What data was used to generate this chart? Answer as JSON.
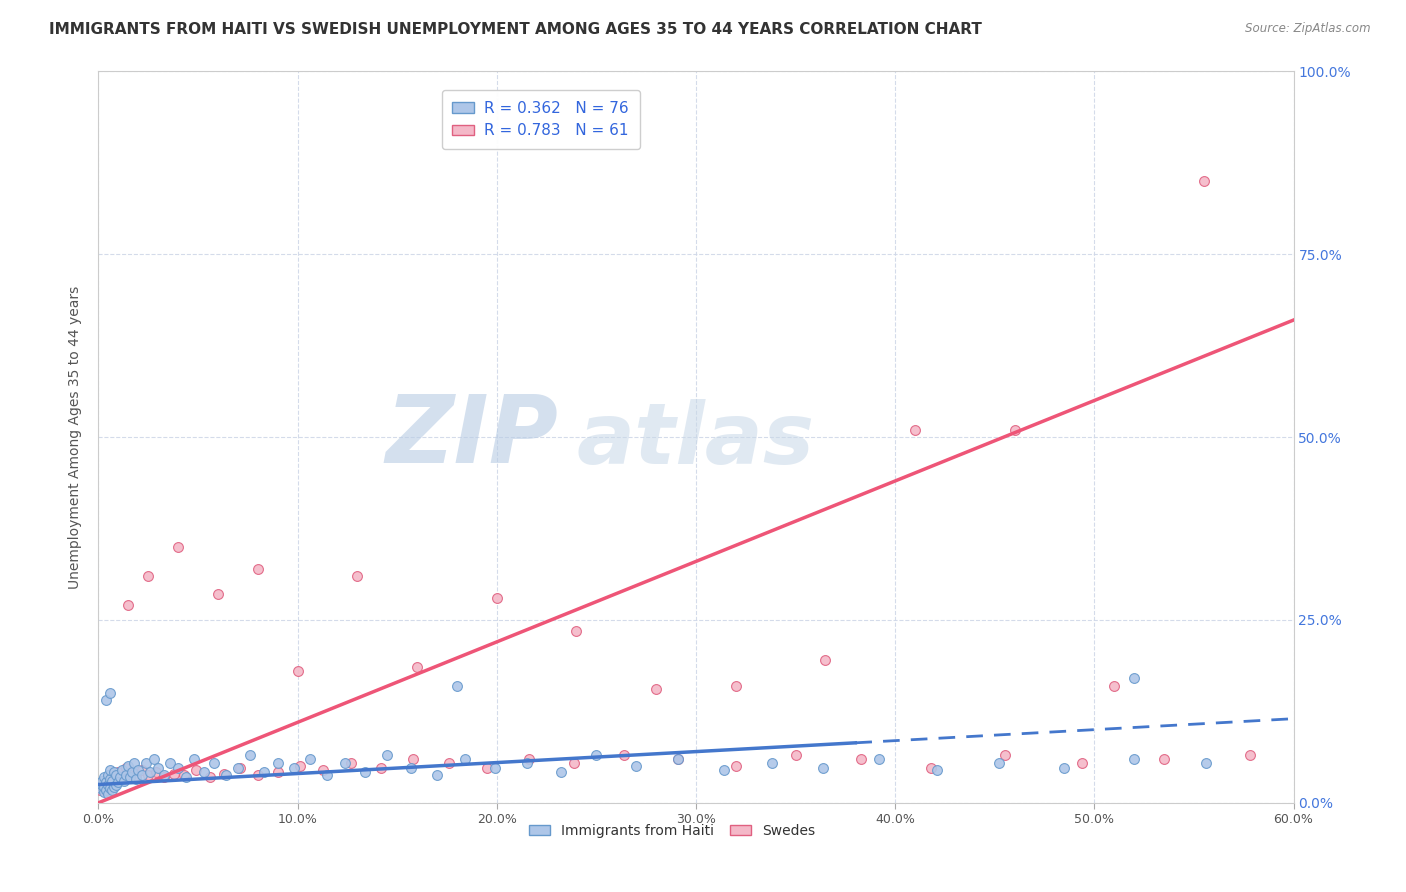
{
  "title": "IMMIGRANTS FROM HAITI VS SWEDISH UNEMPLOYMENT AMONG AGES 35 TO 44 YEARS CORRELATION CHART",
  "source": "Source: ZipAtlas.com",
  "xlabel_ticks": [
    "0.0%",
    "10.0%",
    "20.0%",
    "30.0%",
    "40.0%",
    "50.0%",
    "60.0%"
  ],
  "ylabel_ticks": [
    "0.0%",
    "25.0%",
    "50.0%",
    "75.0%",
    "100.0%"
  ],
  "xlabel_values": [
    0.0,
    0.1,
    0.2,
    0.3,
    0.4,
    0.5,
    0.6
  ],
  "ylabel_values": [
    0.0,
    0.25,
    0.5,
    0.75,
    1.0
  ],
  "xlim": [
    0.0,
    0.6
  ],
  "ylim": [
    0.0,
    1.0
  ],
  "ylabel": "Unemployment Among Ages 35 to 44 years",
  "haiti_color": "#aec6e8",
  "haiti_edge_color": "#6699cc",
  "swedes_color": "#f4b8c8",
  "swedes_edge_color": "#e06080",
  "haiti_R": 0.362,
  "haiti_N": 76,
  "swedes_R": 0.783,
  "swedes_N": 61,
  "legend_label_haiti": "Immigrants from Haiti",
  "legend_label_swedes": "Swedes",
  "trendline_haiti_color": "#4477cc",
  "trendline_swedes_color": "#ee5577",
  "haiti_scatter_x": [
    0.001,
    0.002,
    0.002,
    0.003,
    0.003,
    0.003,
    0.004,
    0.004,
    0.005,
    0.005,
    0.005,
    0.006,
    0.006,
    0.006,
    0.007,
    0.007,
    0.008,
    0.008,
    0.009,
    0.009,
    0.01,
    0.011,
    0.012,
    0.013,
    0.014,
    0.015,
    0.016,
    0.017,
    0.018,
    0.019,
    0.02,
    0.022,
    0.024,
    0.026,
    0.028,
    0.03,
    0.033,
    0.036,
    0.04,
    0.044,
    0.048,
    0.053,
    0.058,
    0.064,
    0.07,
    0.076,
    0.083,
    0.09,
    0.098,
    0.106,
    0.115,
    0.124,
    0.134,
    0.145,
    0.157,
    0.17,
    0.184,
    0.199,
    0.215,
    0.232,
    0.25,
    0.27,
    0.291,
    0.314,
    0.338,
    0.364,
    0.392,
    0.421,
    0.452,
    0.485,
    0.52,
    0.556,
    0.004,
    0.006,
    0.18,
    0.52
  ],
  "haiti_scatter_y": [
    0.02,
    0.025,
    0.03,
    0.015,
    0.022,
    0.035,
    0.018,
    0.028,
    0.012,
    0.025,
    0.038,
    0.02,
    0.032,
    0.045,
    0.018,
    0.03,
    0.022,
    0.042,
    0.025,
    0.038,
    0.028,
    0.035,
    0.045,
    0.03,
    0.038,
    0.05,
    0.035,
    0.042,
    0.055,
    0.032,
    0.045,
    0.038,
    0.055,
    0.042,
    0.06,
    0.048,
    0.038,
    0.055,
    0.048,
    0.035,
    0.06,
    0.042,
    0.055,
    0.038,
    0.048,
    0.065,
    0.042,
    0.055,
    0.048,
    0.06,
    0.038,
    0.055,
    0.042,
    0.065,
    0.048,
    0.038,
    0.06,
    0.048,
    0.055,
    0.042,
    0.065,
    0.05,
    0.06,
    0.045,
    0.055,
    0.048,
    0.06,
    0.045,
    0.055,
    0.048,
    0.06,
    0.055,
    0.14,
    0.15,
    0.16,
    0.17
  ],
  "swedes_scatter_x": [
    0.001,
    0.002,
    0.003,
    0.004,
    0.005,
    0.006,
    0.007,
    0.008,
    0.01,
    0.012,
    0.014,
    0.016,
    0.019,
    0.022,
    0.025,
    0.029,
    0.033,
    0.038,
    0.043,
    0.049,
    0.056,
    0.063,
    0.071,
    0.08,
    0.09,
    0.101,
    0.113,
    0.127,
    0.142,
    0.158,
    0.176,
    0.195,
    0.216,
    0.239,
    0.264,
    0.291,
    0.32,
    0.35,
    0.383,
    0.418,
    0.455,
    0.494,
    0.535,
    0.578,
    0.015,
    0.025,
    0.04,
    0.06,
    0.08,
    0.1,
    0.13,
    0.16,
    0.2,
    0.24,
    0.28,
    0.32,
    0.365,
    0.41,
    0.46,
    0.51,
    0.555
  ],
  "swedes_scatter_y": [
    0.018,
    0.022,
    0.03,
    0.025,
    0.035,
    0.028,
    0.038,
    0.032,
    0.042,
    0.035,
    0.048,
    0.038,
    0.035,
    0.045,
    0.038,
    0.042,
    0.035,
    0.04,
    0.038,
    0.045,
    0.035,
    0.04,
    0.048,
    0.038,
    0.042,
    0.05,
    0.045,
    0.055,
    0.048,
    0.06,
    0.055,
    0.048,
    0.06,
    0.055,
    0.065,
    0.06,
    0.05,
    0.065,
    0.06,
    0.048,
    0.065,
    0.055,
    0.06,
    0.065,
    0.27,
    0.31,
    0.35,
    0.285,
    0.32,
    0.18,
    0.31,
    0.185,
    0.28,
    0.235,
    0.155,
    0.16,
    0.195,
    0.51,
    0.51,
    0.16,
    0.85
  ],
  "watermark_zip": "ZIP",
  "watermark_atlas": "atlas",
  "background_color": "#ffffff",
  "grid_color": "#d0d8e8",
  "title_fontsize": 11,
  "label_fontsize": 10,
  "tick_fontsize": 9,
  "legend_fontsize": 11,
  "haiti_trendline_solid_end": 0.38,
  "swedes_trendline_end": 0.6
}
